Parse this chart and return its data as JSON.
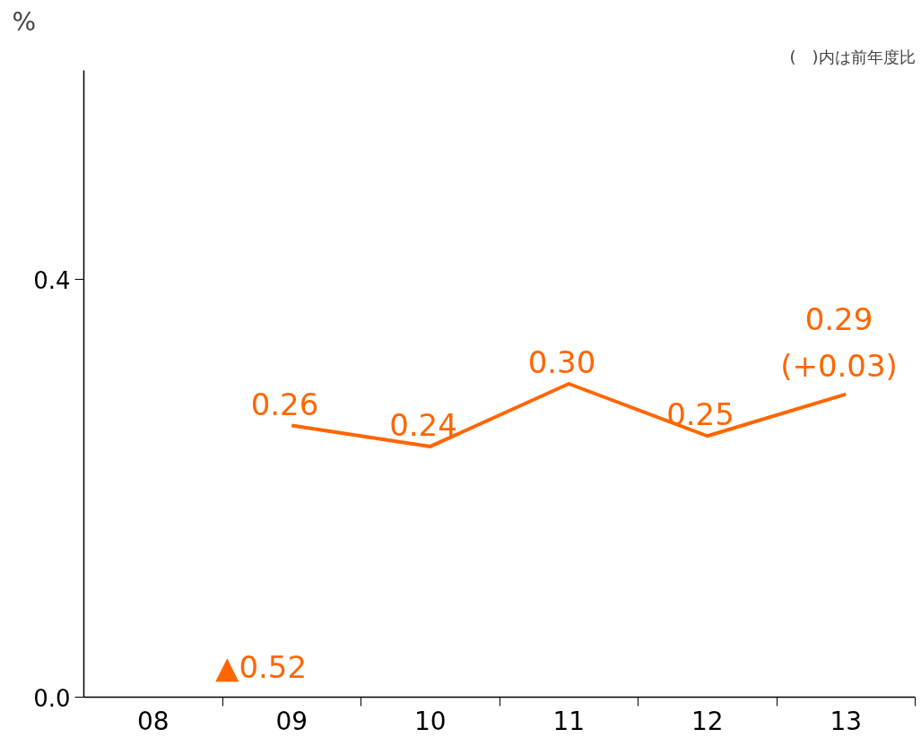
{
  "chart_data": {
    "type": "line",
    "ylabel": "%",
    "annotations": [
      "(　)内は前年度比",
      "▲0.52"
    ],
    "categories": [
      "08",
      "09",
      "10",
      "11",
      "12",
      "13"
    ],
    "series": [
      {
        "color": "#ff6600",
        "values": [
          null,
          0.26,
          0.24,
          0.3,
          0.25,
          0.29
        ],
        "value_labels": [
          null,
          "0.26",
          "0.24",
          "0.30",
          "0.25",
          "0.29\n(+0.03)"
        ]
      }
    ],
    "ylim": [
      0,
      0.6
    ],
    "yticks": [
      {
        "value": 0,
        "label": "0.0"
      },
      {
        "value": 0.4,
        "label": "0.4"
      }
    ],
    "grid": false,
    "marker": "none",
    "line_style": "solid"
  }
}
